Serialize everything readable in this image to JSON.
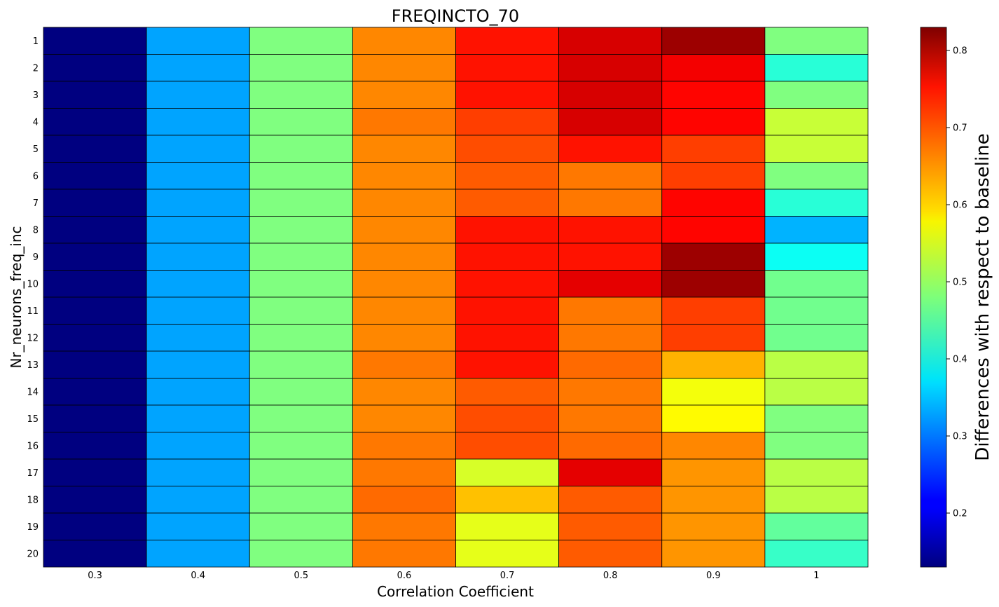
{
  "chart_data": {
    "type": "heatmap",
    "title": "FREQINCTO_70",
    "xlabel": "Correlation Coefficient",
    "ylabel": "Nr_neurons_freq_inc",
    "x_categories": [
      "0.3",
      "0.4",
      "0.5",
      "0.6",
      "0.7",
      "0.8",
      "0.9",
      "1"
    ],
    "y_categories": [
      "1",
      "2",
      "3",
      "4",
      "5",
      "6",
      "7",
      "8",
      "9",
      "10",
      "11",
      "12",
      "13",
      "14",
      "15",
      "16",
      "17",
      "18",
      "19",
      "20"
    ],
    "values": [
      [
        0.13,
        0.33,
        0.48,
        0.65,
        0.73,
        0.77,
        0.81,
        0.48
      ],
      [
        0.13,
        0.33,
        0.48,
        0.65,
        0.73,
        0.77,
        0.75,
        0.42
      ],
      [
        0.13,
        0.33,
        0.48,
        0.65,
        0.73,
        0.77,
        0.74,
        0.48
      ],
      [
        0.13,
        0.33,
        0.48,
        0.66,
        0.7,
        0.77,
        0.74,
        0.53
      ],
      [
        0.13,
        0.33,
        0.48,
        0.65,
        0.69,
        0.73,
        0.7,
        0.53
      ],
      [
        0.13,
        0.33,
        0.48,
        0.65,
        0.68,
        0.66,
        0.7,
        0.48
      ],
      [
        0.13,
        0.33,
        0.48,
        0.65,
        0.68,
        0.66,
        0.74,
        0.42
      ],
      [
        0.13,
        0.33,
        0.48,
        0.65,
        0.73,
        0.73,
        0.74,
        0.34
      ],
      [
        0.13,
        0.33,
        0.48,
        0.65,
        0.73,
        0.73,
        0.81,
        0.4
      ],
      [
        0.13,
        0.33,
        0.48,
        0.65,
        0.73,
        0.76,
        0.81,
        0.47
      ],
      [
        0.13,
        0.33,
        0.48,
        0.65,
        0.73,
        0.66,
        0.7,
        0.47
      ],
      [
        0.13,
        0.33,
        0.48,
        0.65,
        0.73,
        0.66,
        0.7,
        0.47
      ],
      [
        0.13,
        0.33,
        0.48,
        0.66,
        0.73,
        0.67,
        0.62,
        0.52
      ],
      [
        0.13,
        0.33,
        0.48,
        0.65,
        0.68,
        0.66,
        0.56,
        0.52
      ],
      [
        0.13,
        0.33,
        0.48,
        0.65,
        0.69,
        0.66,
        0.57,
        0.48
      ],
      [
        0.13,
        0.33,
        0.48,
        0.66,
        0.69,
        0.67,
        0.65,
        0.48
      ],
      [
        0.13,
        0.33,
        0.48,
        0.66,
        0.54,
        0.76,
        0.64,
        0.52
      ],
      [
        0.13,
        0.33,
        0.48,
        0.67,
        0.61,
        0.68,
        0.64,
        0.52
      ],
      [
        0.13,
        0.33,
        0.48,
        0.66,
        0.55,
        0.68,
        0.64,
        0.46
      ],
      [
        0.13,
        0.33,
        0.48,
        0.66,
        0.55,
        0.68,
        0.64,
        0.43
      ]
    ],
    "colorbar": {
      "label": "Differences with respect to baseline",
      "colormap": "jet",
      "min": 0.13,
      "max": 0.83,
      "ticks": [
        "0.2",
        "0.3",
        "0.4",
        "0.5",
        "0.6",
        "0.7",
        "0.8"
      ]
    },
    "cell_edge_color": "#000000"
  }
}
